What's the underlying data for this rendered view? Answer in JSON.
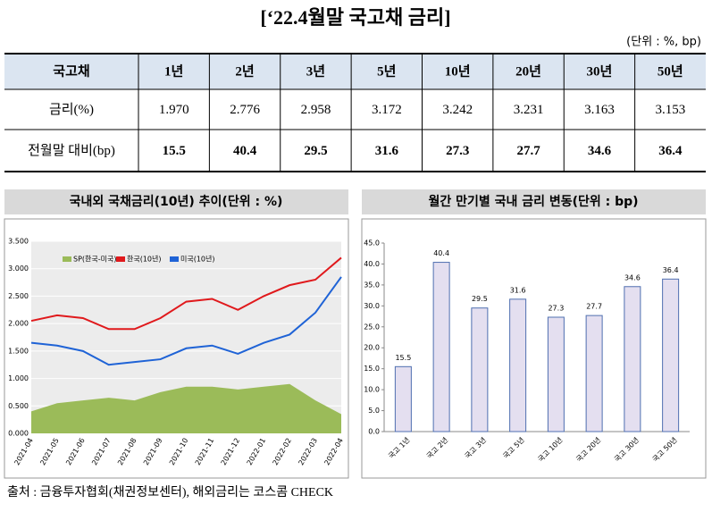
{
  "title": "[‘22.4월말 국고채 금리]",
  "unit": "(단위 : %, bp)",
  "table": {
    "header": [
      "국고채",
      "1년",
      "2년",
      "3년",
      "5년",
      "10년",
      "20년",
      "30년",
      "50년"
    ],
    "rows": [
      [
        "금리(%)",
        "1.970",
        "2.776",
        "2.958",
        "3.172",
        "3.242",
        "3.231",
        "3.163",
        "3.153"
      ],
      [
        "전월말 대비(bp)",
        "15.5",
        "40.4",
        "29.5",
        "31.6",
        "27.3",
        "27.7",
        "34.6",
        "36.4"
      ]
    ]
  },
  "chart_data": [
    {
      "type": "line",
      "title": "국내외 국채금리(10년) 추이(단위 : %)",
      "x": [
        "2021-04",
        "2021-05",
        "2021-06",
        "2021-07",
        "2021-08",
        "2021-09",
        "2021-10",
        "2021-11",
        "2021-12",
        "2022-01",
        "2022-02",
        "2022-03",
        "2022-04"
      ],
      "series": [
        {
          "name": "SP(한국-미국)",
          "color": "#9bbb59",
          "kind": "area",
          "values": [
            0.4,
            0.55,
            0.6,
            0.65,
            0.6,
            0.75,
            0.85,
            0.85,
            0.8,
            0.85,
            0.9,
            0.6,
            0.35
          ]
        },
        {
          "name": "한국(10년)",
          "color": "#e0191c",
          "kind": "line",
          "values": [
            2.05,
            2.15,
            2.1,
            1.9,
            1.9,
            2.1,
            2.4,
            2.45,
            2.25,
            2.5,
            2.7,
            2.8,
            3.2
          ]
        },
        {
          "name": "미국(10년)",
          "color": "#1f63d6",
          "kind": "line",
          "values": [
            1.65,
            1.6,
            1.5,
            1.25,
            1.3,
            1.35,
            1.55,
            1.6,
            1.45,
            1.65,
            1.8,
            2.2,
            2.85
          ]
        }
      ],
      "ylim": [
        0,
        3.5
      ],
      "yticks": [
        {
          "value": 0,
          "label": "0.000"
        },
        {
          "value": 0.5,
          "label": "0.500"
        },
        {
          "value": 1,
          "label": "1.000"
        },
        {
          "value": 1.5,
          "label": "1.500"
        },
        {
          "value": 2,
          "label": "2.000"
        },
        {
          "value": 2.5,
          "label": "2.500"
        },
        {
          "value": 3,
          "label": "3.000"
        },
        {
          "value": 3.5,
          "label": "3.500"
        }
      ],
      "grid": true
    },
    {
      "type": "bar",
      "title": "월간 만기별 국내 금리 변동(단위 : bp)",
      "categories": [
        "국고 1년",
        "국고 2년",
        "국고 3년",
        "국고 5년",
        "국고 10년",
        "국고 20년",
        "국고 30년",
        "국고 50년"
      ],
      "values": [
        15.5,
        40.4,
        29.5,
        31.6,
        27.3,
        27.7,
        34.6,
        36.4
      ],
      "color": "#e4dff0",
      "ylim": [
        0,
        45
      ],
      "yticks": [
        {
          "value": 0,
          "label": "0.0"
        },
        {
          "value": 5,
          "label": "5.0"
        },
        {
          "value": 10,
          "label": "10.0"
        },
        {
          "value": 15,
          "label": "15.0"
        },
        {
          "value": 20,
          "label": "20.0"
        },
        {
          "value": 25,
          "label": "25.0"
        },
        {
          "value": 30,
          "label": "30.0"
        },
        {
          "value": 35,
          "label": "35.0"
        },
        {
          "value": 40,
          "label": "40.0"
        },
        {
          "value": 45,
          "label": "45.0"
        }
      ],
      "grid": false
    }
  ],
  "source": "출처 : 금융투자협회(채권정보센터), 해외금리는 코스콤 CHECK"
}
